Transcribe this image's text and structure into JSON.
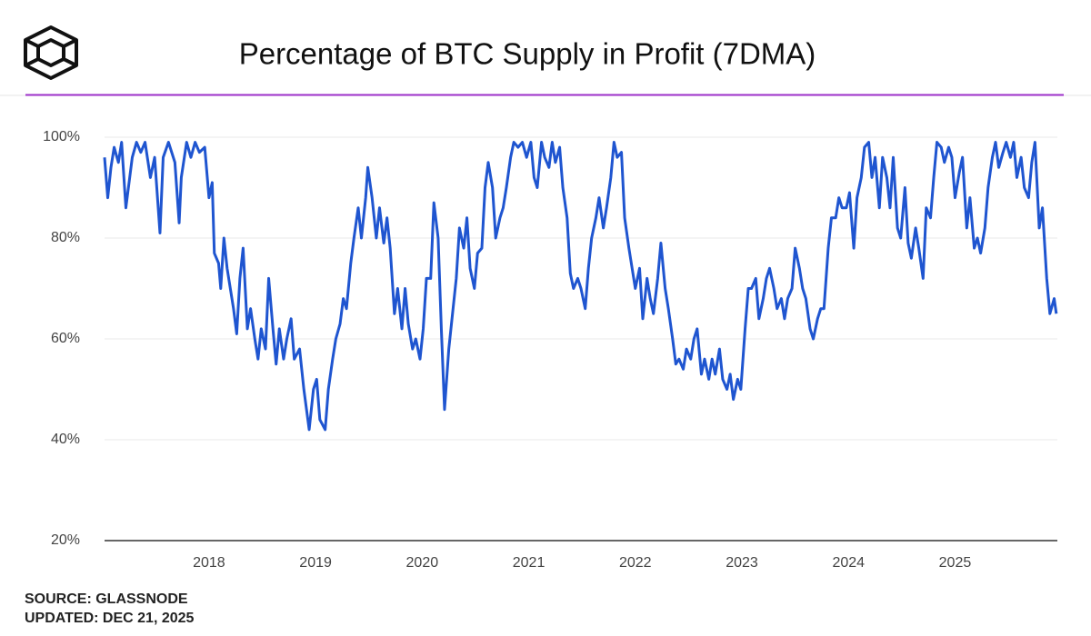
{
  "chart_data": {
    "type": "line",
    "title": "Percentage of BTC Supply in Profit (7DMA)",
    "source": "SOURCE: GLASSNODE",
    "updated": "UPDATED: DEC 21, 2025",
    "color": "#1f55d0",
    "grid": true,
    "xlim": [
      2017.02,
      2025.96
    ],
    "xticks": [
      2018,
      2019,
      2020,
      2021,
      2022,
      2023,
      2024,
      2025
    ],
    "ylim": [
      20,
      100
    ],
    "yticks": [
      {
        "value": 20,
        "label": "20%"
      },
      {
        "value": 40,
        "label": "40%"
      },
      {
        "value": 60,
        "label": "60%"
      },
      {
        "value": 80,
        "label": "80%"
      },
      {
        "value": 100,
        "label": "100%"
      }
    ],
    "x": [
      2017.02,
      2017.05,
      2017.08,
      2017.11,
      2017.15,
      2017.18,
      2017.22,
      2017.28,
      2017.32,
      2017.36,
      2017.4,
      2017.45,
      2017.49,
      2017.54,
      2017.57,
      2017.62,
      2017.68,
      2017.72,
      2017.74,
      2017.79,
      2017.83,
      2017.87,
      2017.91,
      2017.96,
      2018.0,
      2018.03,
      2018.05,
      2018.09,
      2018.11,
      2018.14,
      2018.17,
      2018.2,
      2018.23,
      2018.26,
      2018.29,
      2018.32,
      2018.36,
      2018.39,
      2018.43,
      2018.46,
      2018.49,
      2018.53,
      2018.56,
      2018.6,
      2018.63,
      2018.66,
      2018.7,
      2018.73,
      2018.77,
      2018.8,
      2018.85,
      2018.89,
      2018.94,
      2018.98,
      2019.01,
      2019.04,
      2019.09,
      2019.12,
      2019.16,
      2019.19,
      2019.23,
      2019.26,
      2019.29,
      2019.33,
      2019.36,
      2019.4,
      2019.43,
      2019.47,
      2019.49,
      2019.53,
      2019.57,
      2019.6,
      2019.64,
      2019.67,
      2019.7,
      2019.74,
      2019.77,
      2019.81,
      2019.84,
      2019.87,
      2019.91,
      2019.94,
      2019.98,
      2020.01,
      2020.04,
      2020.08,
      2020.11,
      2020.15,
      2020.18,
      2020.21,
      2020.25,
      2020.28,
      2020.32,
      2020.35,
      2020.39,
      2020.42,
      2020.45,
      2020.49,
      2020.52,
      2020.56,
      2020.59,
      2020.62,
      2020.66,
      2020.69,
      2020.73,
      2020.76,
      2020.79,
      2020.83,
      2020.86,
      2020.9,
      2020.94,
      2020.98,
      2021.02,
      2021.05,
      2021.08,
      2021.12,
      2021.15,
      2021.19,
      2021.22,
      2021.25,
      2021.29,
      2021.32,
      2021.36,
      2021.39,
      2021.42,
      2021.46,
      2021.49,
      2021.53,
      2021.56,
      2021.59,
      2021.63,
      2021.66,
      2021.7,
      2021.73,
      2021.77,
      2021.8,
      2021.83,
      2021.87,
      2021.9,
      2021.94,
      2021.97,
      2022.0,
      2022.04,
      2022.07,
      2022.11,
      2022.14,
      2022.17,
      2022.21,
      2022.24,
      2022.28,
      2022.31,
      2022.35,
      2022.38,
      2022.41,
      2022.45,
      2022.48,
      2022.52,
      2022.55,
      2022.58,
      2022.62,
      2022.65,
      2022.69,
      2022.72,
      2022.75,
      2022.79,
      2022.82,
      2022.86,
      2022.89,
      2022.92,
      2022.96,
      2022.99,
      2023.03,
      2023.06,
      2023.09,
      2023.13,
      2023.16,
      2023.2,
      2023.23,
      2023.26,
      2023.3,
      2023.33,
      2023.37,
      2023.4,
      2023.43,
      2023.47,
      2023.5,
      2023.54,
      2023.57,
      2023.6,
      2023.64,
      2023.67,
      2023.71,
      2023.74,
      2023.77,
      2023.81,
      2023.84,
      2023.88,
      2023.91,
      2023.94,
      2023.98,
      2024.01,
      2024.05,
      2024.08,
      2024.12,
      2024.15,
      2024.19,
      2024.22,
      2024.25,
      2024.29,
      2024.32,
      2024.36,
      2024.39,
      2024.42,
      2024.46,
      2024.49,
      2024.53,
      2024.56,
      2024.59,
      2024.63,
      2024.66,
      2024.7,
      2024.73,
      2024.77,
      2024.8,
      2024.83,
      2024.87,
      2024.9,
      2024.94,
      2024.97,
      2025.0,
      2025.04,
      2025.07,
      2025.11,
      2025.14,
      2025.18,
      2025.21,
      2025.24,
      2025.28,
      2025.31,
      2025.35,
      2025.38,
      2025.41,
      2025.45,
      2025.48,
      2025.52,
      2025.55,
      2025.58,
      2025.62,
      2025.65,
      2025.69,
      2025.72,
      2025.75,
      2025.79,
      2025.82,
      2025.86,
      2025.89,
      2025.93,
      2025.95
    ],
    "values": [
      96,
      88,
      94,
      98,
      95,
      99,
      86,
      96,
      99,
      97,
      99,
      92,
      96,
      81,
      96,
      99,
      95,
      83,
      92,
      99,
      96,
      99,
      97,
      98,
      88,
      91,
      77,
      75,
      70,
      80,
      74,
      70,
      66,
      61,
      72,
      78,
      62,
      66,
      60,
      56,
      62,
      58,
      72,
      62,
      55,
      62,
      56,
      60,
      64,
      56,
      58,
      50,
      42,
      50,
      52,
      44,
      42,
      50,
      56,
      60,
      63,
      68,
      66,
      75,
      80,
      86,
      80,
      88,
      94,
      88,
      80,
      86,
      79,
      84,
      78,
      65,
      70,
      62,
      70,
      63,
      58,
      60,
      56,
      62,
      72,
      72,
      87,
      80,
      62,
      46,
      58,
      64,
      72,
      82,
      78,
      84,
      74,
      70,
      77,
      78,
      90,
      95,
      90,
      80,
      84,
      86,
      90,
      96,
      99,
      98,
      99,
      96,
      99,
      92,
      90,
      99,
      96,
      94,
      99,
      95,
      98,
      90,
      84,
      73,
      70,
      72,
      70,
      66,
      74,
      80,
      84,
      88,
      82,
      86,
      92,
      99,
      96,
      97,
      84,
      78,
      74,
      70,
      74,
      64,
      72,
      68,
      65,
      72,
      79,
      70,
      66,
      60,
      55,
      56,
      54,
      58,
      56,
      60,
      62,
      53,
      56,
      52,
      56,
      53,
      58,
      52,
      50,
      53,
      48,
      52,
      50,
      62,
      70,
      70,
      72,
      64,
      68,
      72,
      74,
      70,
      66,
      68,
      64,
      68,
      70,
      78,
      74,
      70,
      68,
      62,
      60,
      64,
      66,
      66,
      78,
      84,
      84,
      88,
      86,
      86,
      89,
      78,
      88,
      92,
      98,
      99,
      92,
      96,
      86,
      96,
      92,
      86,
      96,
      82,
      80,
      90,
      79,
      76,
      82,
      78,
      72,
      86,
      84,
      92,
      99,
      98,
      95,
      98,
      96,
      88,
      93,
      96,
      82,
      88,
      78,
      80,
      77,
      82,
      90,
      96,
      99,
      94,
      97,
      99,
      96,
      99,
      92,
      96,
      90,
      88,
      95,
      99,
      82,
      86,
      72,
      65,
      68,
      65
    ]
  }
}
